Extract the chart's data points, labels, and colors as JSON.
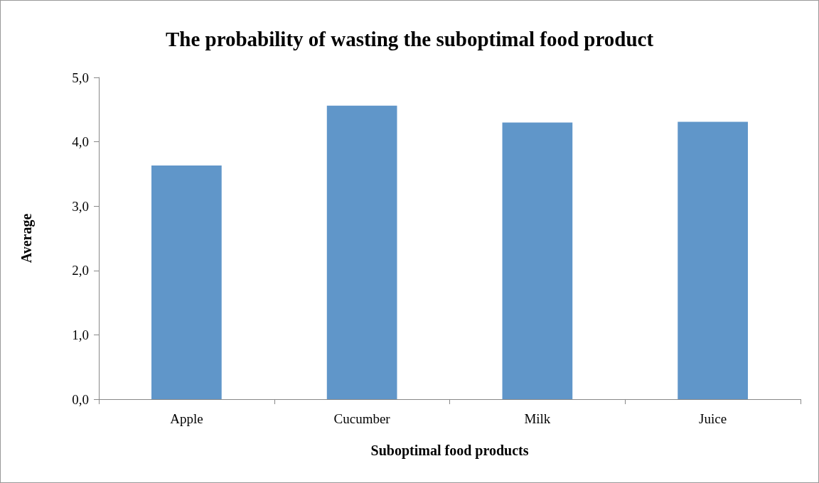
{
  "chart_data": {
    "type": "bar",
    "title": "The probability of wasting the suboptimal food product",
    "xlabel": "Suboptimal food products",
    "ylabel": "Average",
    "categories": [
      "Apple",
      "Cucumber",
      "Milk",
      "Juice"
    ],
    "values": [
      3.63,
      4.56,
      4.3,
      4.31
    ],
    "color": "#6096c9",
    "ylim": [
      0,
      5
    ],
    "yticks": [
      {
        "value": 0,
        "label": "0,0"
      },
      {
        "value": 1,
        "label": "1,0"
      },
      {
        "value": 2,
        "label": "2,0"
      },
      {
        "value": 3,
        "label": "3,0"
      },
      {
        "value": 4,
        "label": "4,0"
      },
      {
        "value": 5,
        "label": "5,0"
      }
    ],
    "grid": false
  }
}
